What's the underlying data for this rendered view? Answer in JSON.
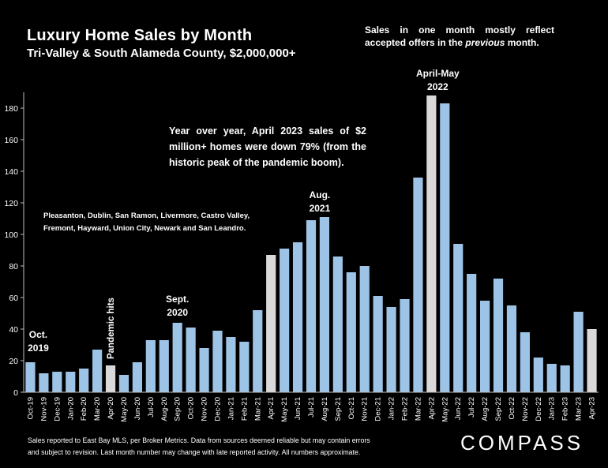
{
  "header": {
    "title": "Luxury Home Sales by Month",
    "subtitle": "Tri-Valley & South Alameda County, $2,000,000+",
    "note_part1": "Sales in one month mostly reflect accepted offers in the ",
    "note_emph": "previous",
    "note_part2": " month."
  },
  "annotations": {
    "yoy": "Year over year, April 2023 sales of $2 million+ homes were down 79% (from the historic peak of the pandemic boom).",
    "cities": "Pleasanton, Dublin, San Ramon, Livermore, Castro Valley, Fremont, Hayward, Union City, Newark and San Leandro.",
    "oct2019": [
      "Oct.",
      "2019"
    ],
    "pandemic": "Pandemic hits",
    "sept2020": [
      "Sept.",
      "2020"
    ],
    "aug2021": [
      "Aug.",
      "2021"
    ],
    "aprmay2022": [
      "April-May",
      "2022"
    ]
  },
  "footer": {
    "source_line1": "Sales reported to East Bay MLS, per Broker Metrics. Data from sources deemed reliable but may contain errors",
    "source_line2": "and subject to revision. Last month number may change with late reported activity. All numbers approximate.",
    "brand": "COMPASS"
  },
  "colors": {
    "bar_blue": "#9dc3e6",
    "bar_gray": "#d9d9d9",
    "axis": "#bfbfbf",
    "background": "#000000"
  },
  "chart_data": {
    "type": "bar",
    "categories": [
      "Oct-19",
      "Nov-19",
      "Dec-19",
      "Jan-20",
      "Feb-20",
      "Mar-20",
      "Apr-20",
      "May-20",
      "Jun-20",
      "Jul-20",
      "Aug-20",
      "Sep-20",
      "Oct-20",
      "Nov-20",
      "Dec-20",
      "Jan-21",
      "Feb-21",
      "Mar-21",
      "Apr-21",
      "May-21",
      "Jun-21",
      "Jul-21",
      "Aug-21",
      "Sep-21",
      "Oct-21",
      "Nov-21",
      "Dec-21",
      "Jan-22",
      "Feb-22",
      "Mar-22",
      "Apr-22",
      "May-22",
      "Jun-22",
      "Jul-22",
      "Aug-22",
      "Sep-22",
      "Oct-22",
      "Nov-22",
      "Dec-22",
      "Jan-23",
      "Feb-23",
      "Mar-23",
      "Apr-23"
    ],
    "values": [
      19,
      12,
      13,
      13,
      15,
      27,
      17,
      11,
      19,
      33,
      33,
      44,
      41,
      28,
      39,
      35,
      32,
      52,
      87,
      91,
      95,
      109,
      111,
      86,
      76,
      80,
      61,
      54,
      59,
      136,
      188,
      183,
      94,
      75,
      58,
      72,
      55,
      38,
      22,
      18,
      17,
      51,
      40
    ],
    "highlight_categories": [
      "Apr-20",
      "Apr-21",
      "Apr-22",
      "Apr-23"
    ],
    "ylim": [
      0,
      190
    ],
    "yticks": [
      0,
      20,
      40,
      60,
      80,
      100,
      120,
      140,
      160,
      180
    ],
    "grid": false
  }
}
